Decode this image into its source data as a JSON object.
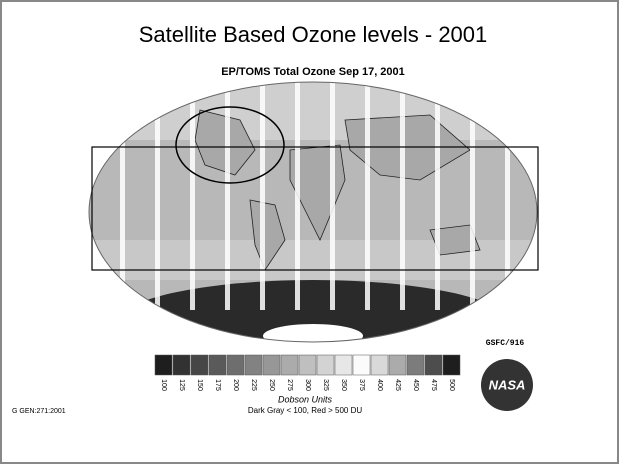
{
  "title": "Satellite Based Ozone levels - 2001",
  "subtitle": "EP/TOMS Total Ozone Sep 17, 2001",
  "colorbar": {
    "ticks": [
      "100",
      "125",
      "150",
      "175",
      "200",
      "225",
      "250",
      "275",
      "300",
      "325",
      "350",
      "375",
      "400",
      "425",
      "450",
      "475",
      "500"
    ],
    "label": "Dobson Units",
    "note": "Dark Gray < 100, Red > 500 DU"
  },
  "footer_left": "G GEN:271:2001",
  "credit": "GSFC/916",
  "logo": "NASA"
}
